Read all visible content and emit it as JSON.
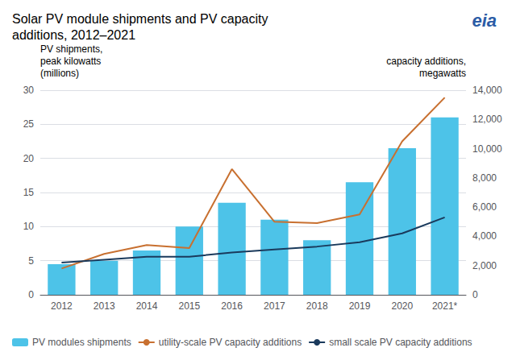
{
  "chart_data": {
    "type": "bar",
    "title": "Solar PV module shipments and PV capacity\nadditions, 2012–2021",
    "categories": [
      "2012",
      "2013",
      "2014",
      "2015",
      "2016",
      "2017",
      "2018",
      "2019",
      "2020",
      "2021*"
    ],
    "series": [
      {
        "name": "PV modules shipments",
        "type": "bar",
        "color": "#4DC3E8",
        "values": [
          4.5,
          5.0,
          6.5,
          10.0,
          13.5,
          11.0,
          8.0,
          16.5,
          21.5,
          26.0
        ]
      },
      {
        "name": "utility-scale PV capacity additions",
        "type": "line",
        "axis": "y2",
        "color": "#C87030",
        "values": [
          1800,
          2800,
          3400,
          3200,
          8600,
          5000,
          4900,
          5500,
          10500,
          13500
        ]
      },
      {
        "name": "small scale PV capacity additions",
        "type": "line",
        "axis": "y2",
        "color": "#1A3A5C",
        "values": [
          2200,
          2400,
          2600,
          2600,
          2900,
          3100,
          3300,
          3600,
          4200,
          5300
        ]
      }
    ],
    "ylabel": "PV shipments,\npeak kilowatts\n(millions)",
    "y2label": "capacity additions,\nmegawatts",
    "ylim": [
      0,
      30
    ],
    "yticks": [
      0,
      5,
      10,
      15,
      20,
      25,
      30
    ],
    "y2lim": [
      0,
      14000
    ],
    "y2ticks": [
      0,
      {
        "value": 2000,
        "label": "2,000"
      },
      {
        "value": 4000,
        "label": "4,000"
      },
      {
        "value": 6000,
        "label": "6,000"
      },
      {
        "value": 8000,
        "label": "8,000"
      },
      {
        "value": 10000,
        "label": "10,000"
      },
      {
        "value": 12000,
        "label": "12,000"
      },
      {
        "value": 14000,
        "label": "14,000"
      }
    ],
    "grid": true,
    "legend": "lower left",
    "annotations": [
      {
        "text": "eia"
      }
    ]
  }
}
